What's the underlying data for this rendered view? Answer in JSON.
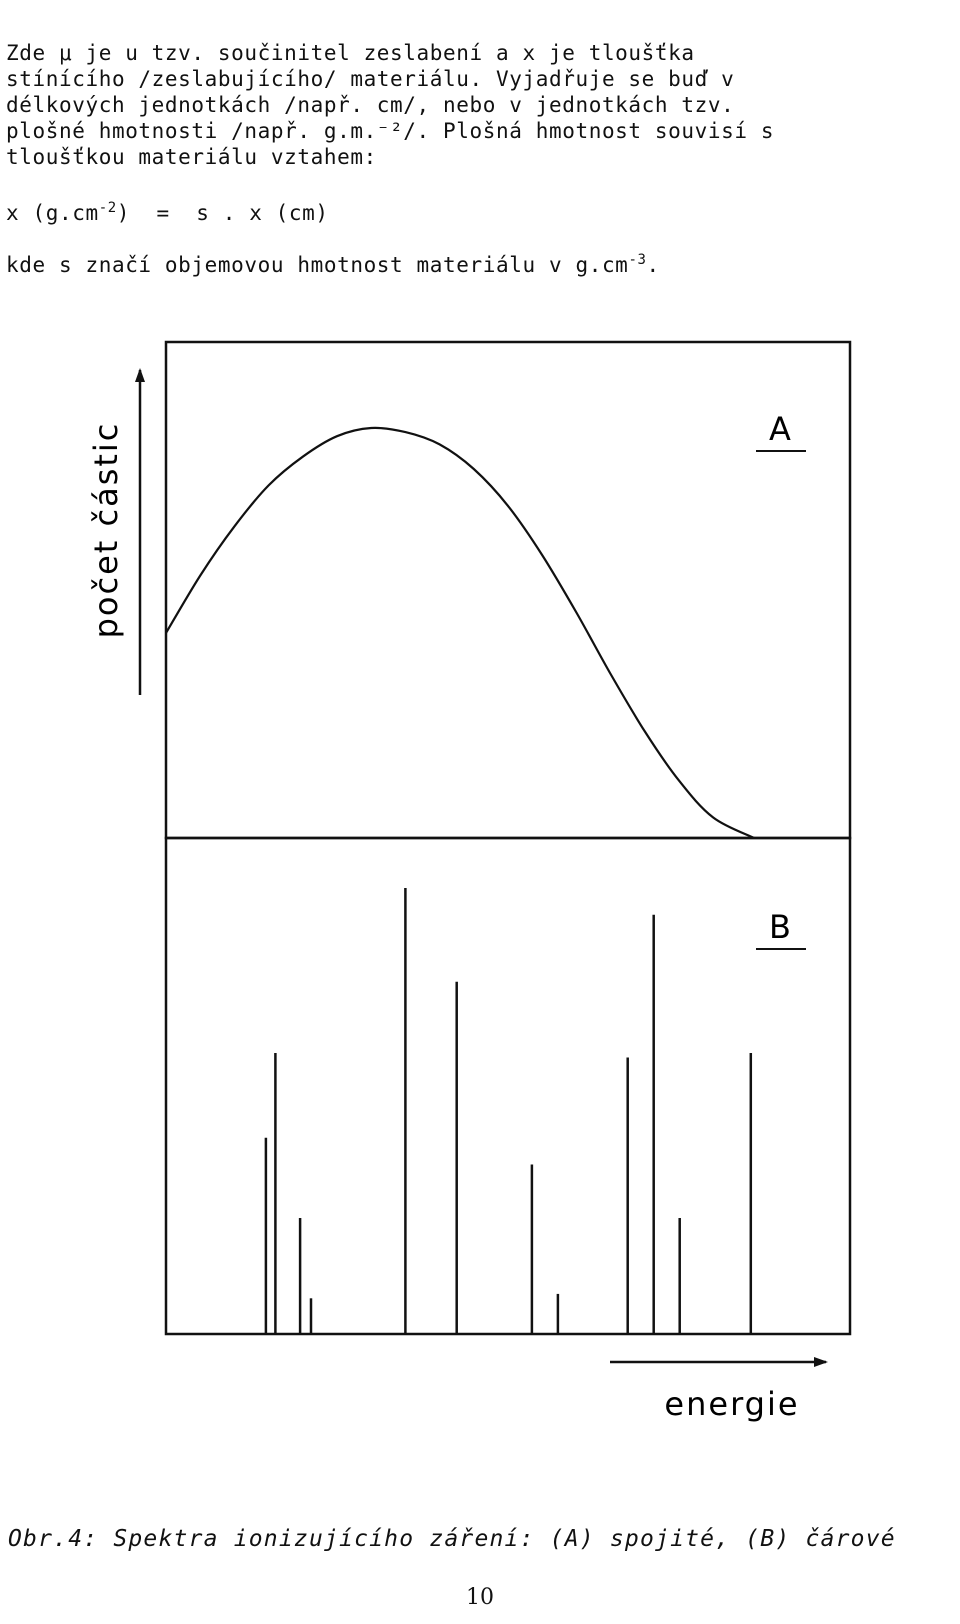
{
  "text": {
    "lines": [
      "Zde μ je u tzv. součinitel zeslabení a x je tloušťka",
      "stínícího /zeslabujícího/ materiálu. Vyjadřuje se buď v",
      "délkových jednotkách /např. cm/, nebo v jednotkách tzv.",
      "plošné hmotnosti /např. g.m.⁻²/. Plošná hmotnost souvisí s",
      "tloušťkou materiálu vztahem:"
    ],
    "formula_left": "x (g.cm",
    "formula_exp": "-2",
    "formula_right": ")  =  s . x (cm)",
    "second_para_main": "kde s značí objemovou hmotnost materiálu v g.cm",
    "second_para_exp": "-3",
    "second_para_end": "."
  },
  "figure": {
    "y_axis_label": "počet částic",
    "x_axis_label": "energie",
    "panel_a_label": "A",
    "panel_b_label": "B"
  },
  "chart_data": [
    {
      "type": "line",
      "title": "A",
      "xlabel": "energie",
      "ylabel": "počet částic",
      "description_of_shape": "continuous spectrum",
      "x": [
        0,
        0.05,
        0.1,
        0.15,
        0.2,
        0.25,
        0.3,
        0.35,
        0.4,
        0.45,
        0.5,
        0.55,
        0.6,
        0.65,
        0.7,
        0.75,
        0.8,
        0.86
      ],
      "y": [
        0.5,
        0.64,
        0.76,
        0.86,
        0.93,
        0.98,
        1.0,
        0.99,
        0.96,
        0.9,
        0.81,
        0.69,
        0.55,
        0.4,
        0.26,
        0.14,
        0.05,
        0.0
      ]
    },
    {
      "type": "bar",
      "title": "B",
      "xlabel": "energie",
      "ylabel": "počet částic",
      "x": [
        0.146,
        0.16,
        0.196,
        0.212,
        0.35,
        0.425,
        0.535,
        0.573,
        0.675,
        0.713,
        0.751,
        0.855
      ],
      "values": [
        0.44,
        0.63,
        0.26,
        0.08,
        1.0,
        0.79,
        0.38,
        0.09,
        0.62,
        0.94,
        0.26,
        0.63
      ]
    }
  ],
  "footer": {
    "caption": "Obr.4: Spektra ionizujícího záření: (A) spojité, (B) čárové",
    "page_number": "10"
  }
}
